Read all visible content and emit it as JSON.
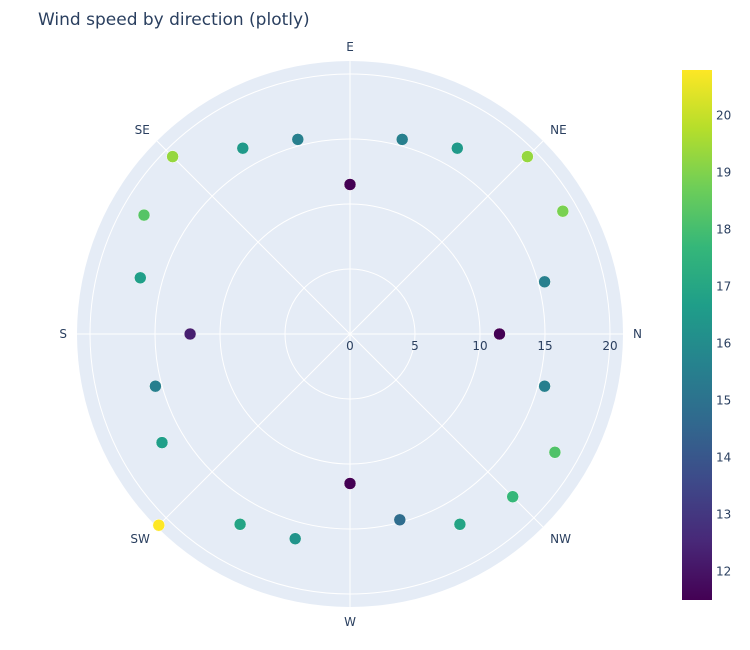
{
  "chart_data": {
    "type": "scatter",
    "coordinate_system": "polar",
    "title": "Wind speed by direction (plotly)",
    "angular_axis": {
      "rotation_zero": "right",
      "direction": "counterclockwise",
      "ticks": [
        {
          "angle": 0,
          "label": "N"
        },
        {
          "angle": 45,
          "label": "NE"
        },
        {
          "angle": 90,
          "label": "E"
        },
        {
          "angle": 135,
          "label": "SE"
        },
        {
          "angle": 180,
          "label": "S"
        },
        {
          "angle": 225,
          "label": "SW"
        },
        {
          "angle": 270,
          "label": "W"
        },
        {
          "angle": 315,
          "label": "NW"
        }
      ]
    },
    "radial_axis": {
      "range": [
        0,
        21
      ],
      "tickvals": [
        0,
        5,
        10,
        15,
        20
      ],
      "ticklabels": [
        "0",
        "5",
        "10",
        "15",
        "20"
      ]
    },
    "colorbar": {
      "colorscale": "Viridis",
      "range": [
        11.5,
        20.8
      ],
      "tickvals": [
        12,
        13,
        14,
        15,
        16,
        17,
        18,
        19,
        20
      ],
      "ticklabels": [
        "12",
        "13",
        "14",
        "15",
        "16",
        "17",
        "18",
        "19",
        "20"
      ]
    },
    "points": [
      {
        "theta": 0,
        "r": 11.5
      },
      {
        "theta": 15,
        "r": 15.5
      },
      {
        "theta": 30,
        "r": 18.9
      },
      {
        "theta": 45,
        "r": 19.3
      },
      {
        "theta": 60,
        "r": 16.5
      },
      {
        "theta": 75,
        "r": 15.5
      },
      {
        "theta": 90,
        "r": 11.5
      },
      {
        "theta": 105,
        "r": 15.5
      },
      {
        "theta": 120,
        "r": 16.5
      },
      {
        "theta": 135,
        "r": 19.3
      },
      {
        "theta": 150,
        "r": 18.3
      },
      {
        "theta": 165,
        "r": 16.7
      },
      {
        "theta": 180,
        "r": 12.3
      },
      {
        "theta": 195,
        "r": 15.5
      },
      {
        "theta": 210,
        "r": 16.7
      },
      {
        "theta": 225,
        "r": 20.8
      },
      {
        "theta": 240,
        "r": 16.9
      },
      {
        "theta": 255,
        "r": 16.3
      },
      {
        "theta": 270,
        "r": 11.5
      },
      {
        "theta": 285,
        "r": 14.8
      },
      {
        "theta": 300,
        "r": 16.9
      },
      {
        "theta": 315,
        "r": 17.7
      },
      {
        "theta": 330,
        "r": 18.2
      },
      {
        "theta": 345,
        "r": 15.5
      }
    ]
  }
}
